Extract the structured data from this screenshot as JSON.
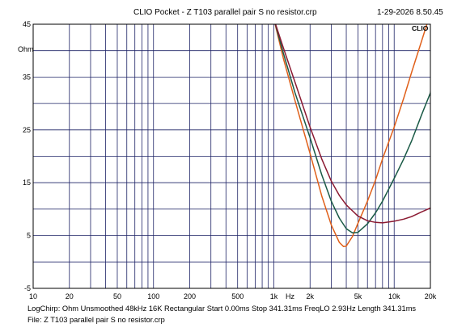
{
  "header": {
    "title": "CLIO Pocket - Z  T103 parallel pair  S no resistor.crp",
    "datetime": "1-29-2026 8.50.45"
  },
  "footer": {
    "line1": "LogChirp:  Ohm   Unsmoothed    48kHz   16K   Rectangular    Start 0.00ms     Stop 341.31ms     FreqLO 2.93Hz    Length 341.31ms",
    "line2": "File: Z  T103 parallel pair  S no resistor.crp"
  },
  "chart_data": {
    "type": "line",
    "title": "CLIO Pocket - Z  T103 parallel pair  S no resistor.crp",
    "brand": "CLIO",
    "ylabel": "Ohm",
    "xlabel": "Hz",
    "xscale": "log",
    "xlim": [
      10,
      20000
    ],
    "ylim": [
      -5,
      45
    ],
    "grid": true,
    "x_ticks": [
      {
        "value": 10,
        "label": "10"
      },
      {
        "value": 20,
        "label": "20"
      },
      {
        "value": 50,
        "label": "50"
      },
      {
        "value": 100,
        "label": "100"
      },
      {
        "value": 200,
        "label": "200"
      },
      {
        "value": 500,
        "label": "500"
      },
      {
        "value": 1000,
        "label": "1k"
      },
      {
        "value": 2000,
        "label": "2k"
      },
      {
        "value": 5000,
        "label": "5k"
      },
      {
        "value": 10000,
        "label": "10k"
      },
      {
        "value": 20000,
        "label": "20k"
      }
    ],
    "y_ticks": [
      {
        "value": 45,
        "label": "45"
      },
      {
        "value": 35,
        "label": "35"
      },
      {
        "value": 25,
        "label": "25"
      },
      {
        "value": 15,
        "label": "15"
      },
      {
        "value": 5,
        "label": "5"
      },
      {
        "value": -5,
        "label": "-5"
      }
    ],
    "series": [
      {
        "color": "#e0601a",
        "points": [
          [
            1000,
            46
          ],
          [
            1200,
            38.5
          ],
          [
            1500,
            30.5
          ],
          [
            2000,
            20.5
          ],
          [
            2500,
            12.5
          ],
          [
            3000,
            7.0
          ],
          [
            3500,
            3.7
          ],
          [
            3800,
            2.9
          ],
          [
            4000,
            3.0
          ],
          [
            4500,
            4.8
          ],
          [
            5000,
            7.3
          ],
          [
            6000,
            11.5
          ],
          [
            7000,
            15.5
          ],
          [
            8000,
            19.5
          ],
          [
            10000,
            25.5
          ],
          [
            12000,
            31.0
          ],
          [
            14000,
            36.0
          ],
          [
            17000,
            42.0
          ],
          [
            19000,
            45.5
          ]
        ]
      },
      {
        "color": "#1a5a46",
        "points": [
          [
            1000,
            46
          ],
          [
            1200,
            39.5
          ],
          [
            1500,
            32.0
          ],
          [
            2000,
            23.5
          ],
          [
            2500,
            16.5
          ],
          [
            3000,
            11.5
          ],
          [
            3500,
            8.3
          ],
          [
            4000,
            6.3
          ],
          [
            4500,
            5.5
          ],
          [
            5000,
            5.6
          ],
          [
            6000,
            7.2
          ],
          [
            7000,
            9.3
          ],
          [
            8000,
            11.5
          ],
          [
            10000,
            15.8
          ],
          [
            12000,
            19.5
          ],
          [
            14000,
            23.0
          ],
          [
            17000,
            28.0
          ],
          [
            20000,
            32.0
          ],
          [
            21000,
            36.5
          ]
        ]
      },
      {
        "color": "#8b1a32",
        "points": [
          [
            1000,
            46
          ],
          [
            1200,
            40.5
          ],
          [
            1500,
            34.0
          ],
          [
            2000,
            25.5
          ],
          [
            2500,
            19.5
          ],
          [
            3000,
            15.3
          ],
          [
            3500,
            12.6
          ],
          [
            4000,
            10.8
          ],
          [
            5000,
            8.7
          ],
          [
            6000,
            7.8
          ],
          [
            7000,
            7.5
          ],
          [
            8000,
            7.4
          ],
          [
            10000,
            7.7
          ],
          [
            12000,
            8.1
          ],
          [
            14000,
            8.6
          ],
          [
            17000,
            9.5
          ],
          [
            20000,
            10.2
          ],
          [
            21000,
            10.5
          ]
        ]
      }
    ]
  }
}
